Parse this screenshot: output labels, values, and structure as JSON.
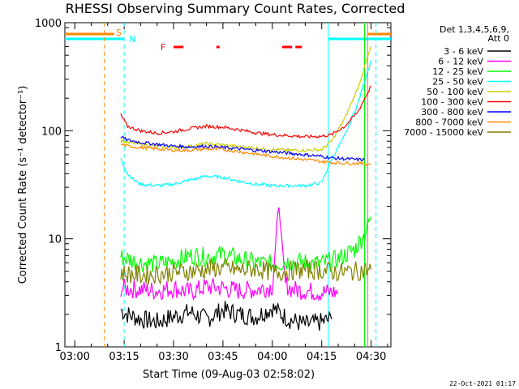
{
  "chart_data": {
    "type": "line",
    "title": "RHESSI Observing Summary Count Rates, Corrected",
    "xlabel": "Start Time (09-Aug-03 02:58:02)",
    "ylabel": "Corrected Count Rate (s⁻¹ detector⁻¹)",
    "y_scale": "log",
    "ylim": [
      1,
      1000
    ],
    "xlim_minutes": [
      -3,
      96
    ],
    "x_ticks": [
      {
        "label": "03:00",
        "min": 0
      },
      {
        "label": "03:15",
        "min": 15
      },
      {
        "label": "03:30",
        "min": 30
      },
      {
        "label": "03:45",
        "min": 45
      },
      {
        "label": "04:00",
        "min": 60
      },
      {
        "label": "04:15",
        "min": 75
      },
      {
        "label": "04:30",
        "min": 90
      }
    ],
    "y_ticks": [
      {
        "label": "1",
        "value": 1
      },
      {
        "label": "10",
        "value": 10
      },
      {
        "label": "100",
        "value": 100
      },
      {
        "label": "1000",
        "value": 1000
      }
    ],
    "legend_header": [
      "Det 1,3,4,5,6,9,",
      "Att 0"
    ],
    "legend_position": "right",
    "series": [
      {
        "name": "3 - 6 keV",
        "color": "#000000",
        "x": [
          14,
          16,
          20,
          25,
          30,
          35,
          40,
          45,
          50,
          55,
          60,
          65,
          70,
          75,
          78
        ],
        "y": [
          2.2,
          2.0,
          1.8,
          1.7,
          1.9,
          2.1,
          1.8,
          2.2,
          2.0,
          1.9,
          2.3,
          1.8,
          1.6,
          1.7,
          1.8
        ]
      },
      {
        "name": "6 - 12 keV",
        "color": "#ff00ff",
        "x": [
          14,
          20,
          25,
          30,
          35,
          40,
          45,
          50,
          55,
          60,
          62,
          64,
          66,
          70,
          75,
          80
        ],
        "y": [
          3.5,
          3.4,
          3.3,
          3.5,
          3.2,
          3.6,
          3.5,
          3.3,
          3.4,
          3.6,
          20,
          3.8,
          3.4,
          3.3,
          3.2,
          3.2
        ]
      },
      {
        "name": "12 - 25 keV",
        "color": "#00ff00",
        "x": [
          14,
          20,
          25,
          30,
          35,
          40,
          45,
          50,
          55,
          60,
          65,
          70,
          75,
          80,
          85,
          88,
          90
        ],
        "y": [
          6.8,
          6.0,
          5.8,
          6.2,
          7.0,
          6.8,
          7.2,
          6.5,
          6.0,
          5.8,
          6.2,
          6.0,
          5.9,
          6.5,
          8.0,
          11,
          16
        ]
      },
      {
        "name": "25 - 50 keV",
        "color": "#00ffff",
        "x": [
          14,
          16,
          18,
          20,
          25,
          30,
          35,
          40,
          45,
          50,
          55,
          60,
          65,
          70,
          75,
          78,
          82,
          86,
          90
        ],
        "y": [
          55,
          40,
          35,
          32,
          31,
          32,
          35,
          38,
          37,
          34,
          32,
          31,
          31,
          31,
          33,
          55,
          90,
          180,
          450
        ]
      },
      {
        "name": "50 - 100 keV",
        "color": "#cccc00",
        "x": [
          14,
          16,
          20,
          25,
          30,
          35,
          40,
          45,
          50,
          55,
          60,
          65,
          70,
          75,
          78,
          82,
          86,
          90
        ],
        "y": [
          82,
          78,
          75,
          72,
          70,
          72,
          76,
          74,
          71,
          69,
          67,
          66,
          66,
          67,
          80,
          130,
          250,
          600
        ]
      },
      {
        "name": "100 - 300 keV",
        "color": "#ff0000",
        "x": [
          14,
          16,
          20,
          25,
          30,
          35,
          40,
          45,
          50,
          55,
          60,
          65,
          70,
          75,
          78,
          82,
          86,
          90
        ],
        "y": [
          140,
          110,
          100,
          95,
          98,
          105,
          110,
          108,
          102,
          96,
          92,
          90,
          88,
          89,
          92,
          110,
          150,
          260
        ]
      },
      {
        "name": "300 - 800 keV",
        "color": "#0000ff",
        "x": [
          14,
          16,
          20,
          25,
          30,
          35,
          40,
          45,
          50,
          55,
          60,
          65,
          70,
          75,
          78,
          82,
          86,
          88
        ],
        "y": [
          88,
          82,
          78,
          75,
          72,
          71,
          72,
          70,
          68,
          66,
          64,
          62,
          60,
          58,
          56,
          55,
          54,
          54
        ]
      },
      {
        "name": "800 - 7000 keV",
        "color": "#ff8800",
        "x": [
          14,
          16,
          20,
          25,
          30,
          35,
          40,
          45,
          50,
          55,
          60,
          65,
          70,
          75,
          78,
          82,
          86,
          90
        ],
        "y": [
          75,
          72,
          70,
          68,
          66,
          66,
          68,
          67,
          64,
          61,
          58,
          56,
          54,
          52,
          51,
          50,
          50,
          49
        ]
      },
      {
        "name": "7000 - 15000 keV",
        "color": "#808000",
        "x": [
          14,
          20,
          25,
          30,
          35,
          40,
          45,
          50,
          55,
          60,
          65,
          70,
          75,
          80,
          85,
          88,
          90
        ],
        "y": [
          4.8,
          4.6,
          4.7,
          4.9,
          5.0,
          5.2,
          5.4,
          5.1,
          5.3,
          4.9,
          5.0,
          5.2,
          5.1,
          4.9,
          5.0,
          5.1,
          5.2
        ]
      }
    ],
    "markers": [
      {
        "label": "S",
        "color": "#ff8800",
        "min": 12
      },
      {
        "label": "N",
        "color": "#00ffff",
        "min": 16
      },
      {
        "label": "F",
        "color": "#ff0000",
        "min": 27
      }
    ],
    "date_stamp": "22-Oct-2021 01:17"
  }
}
